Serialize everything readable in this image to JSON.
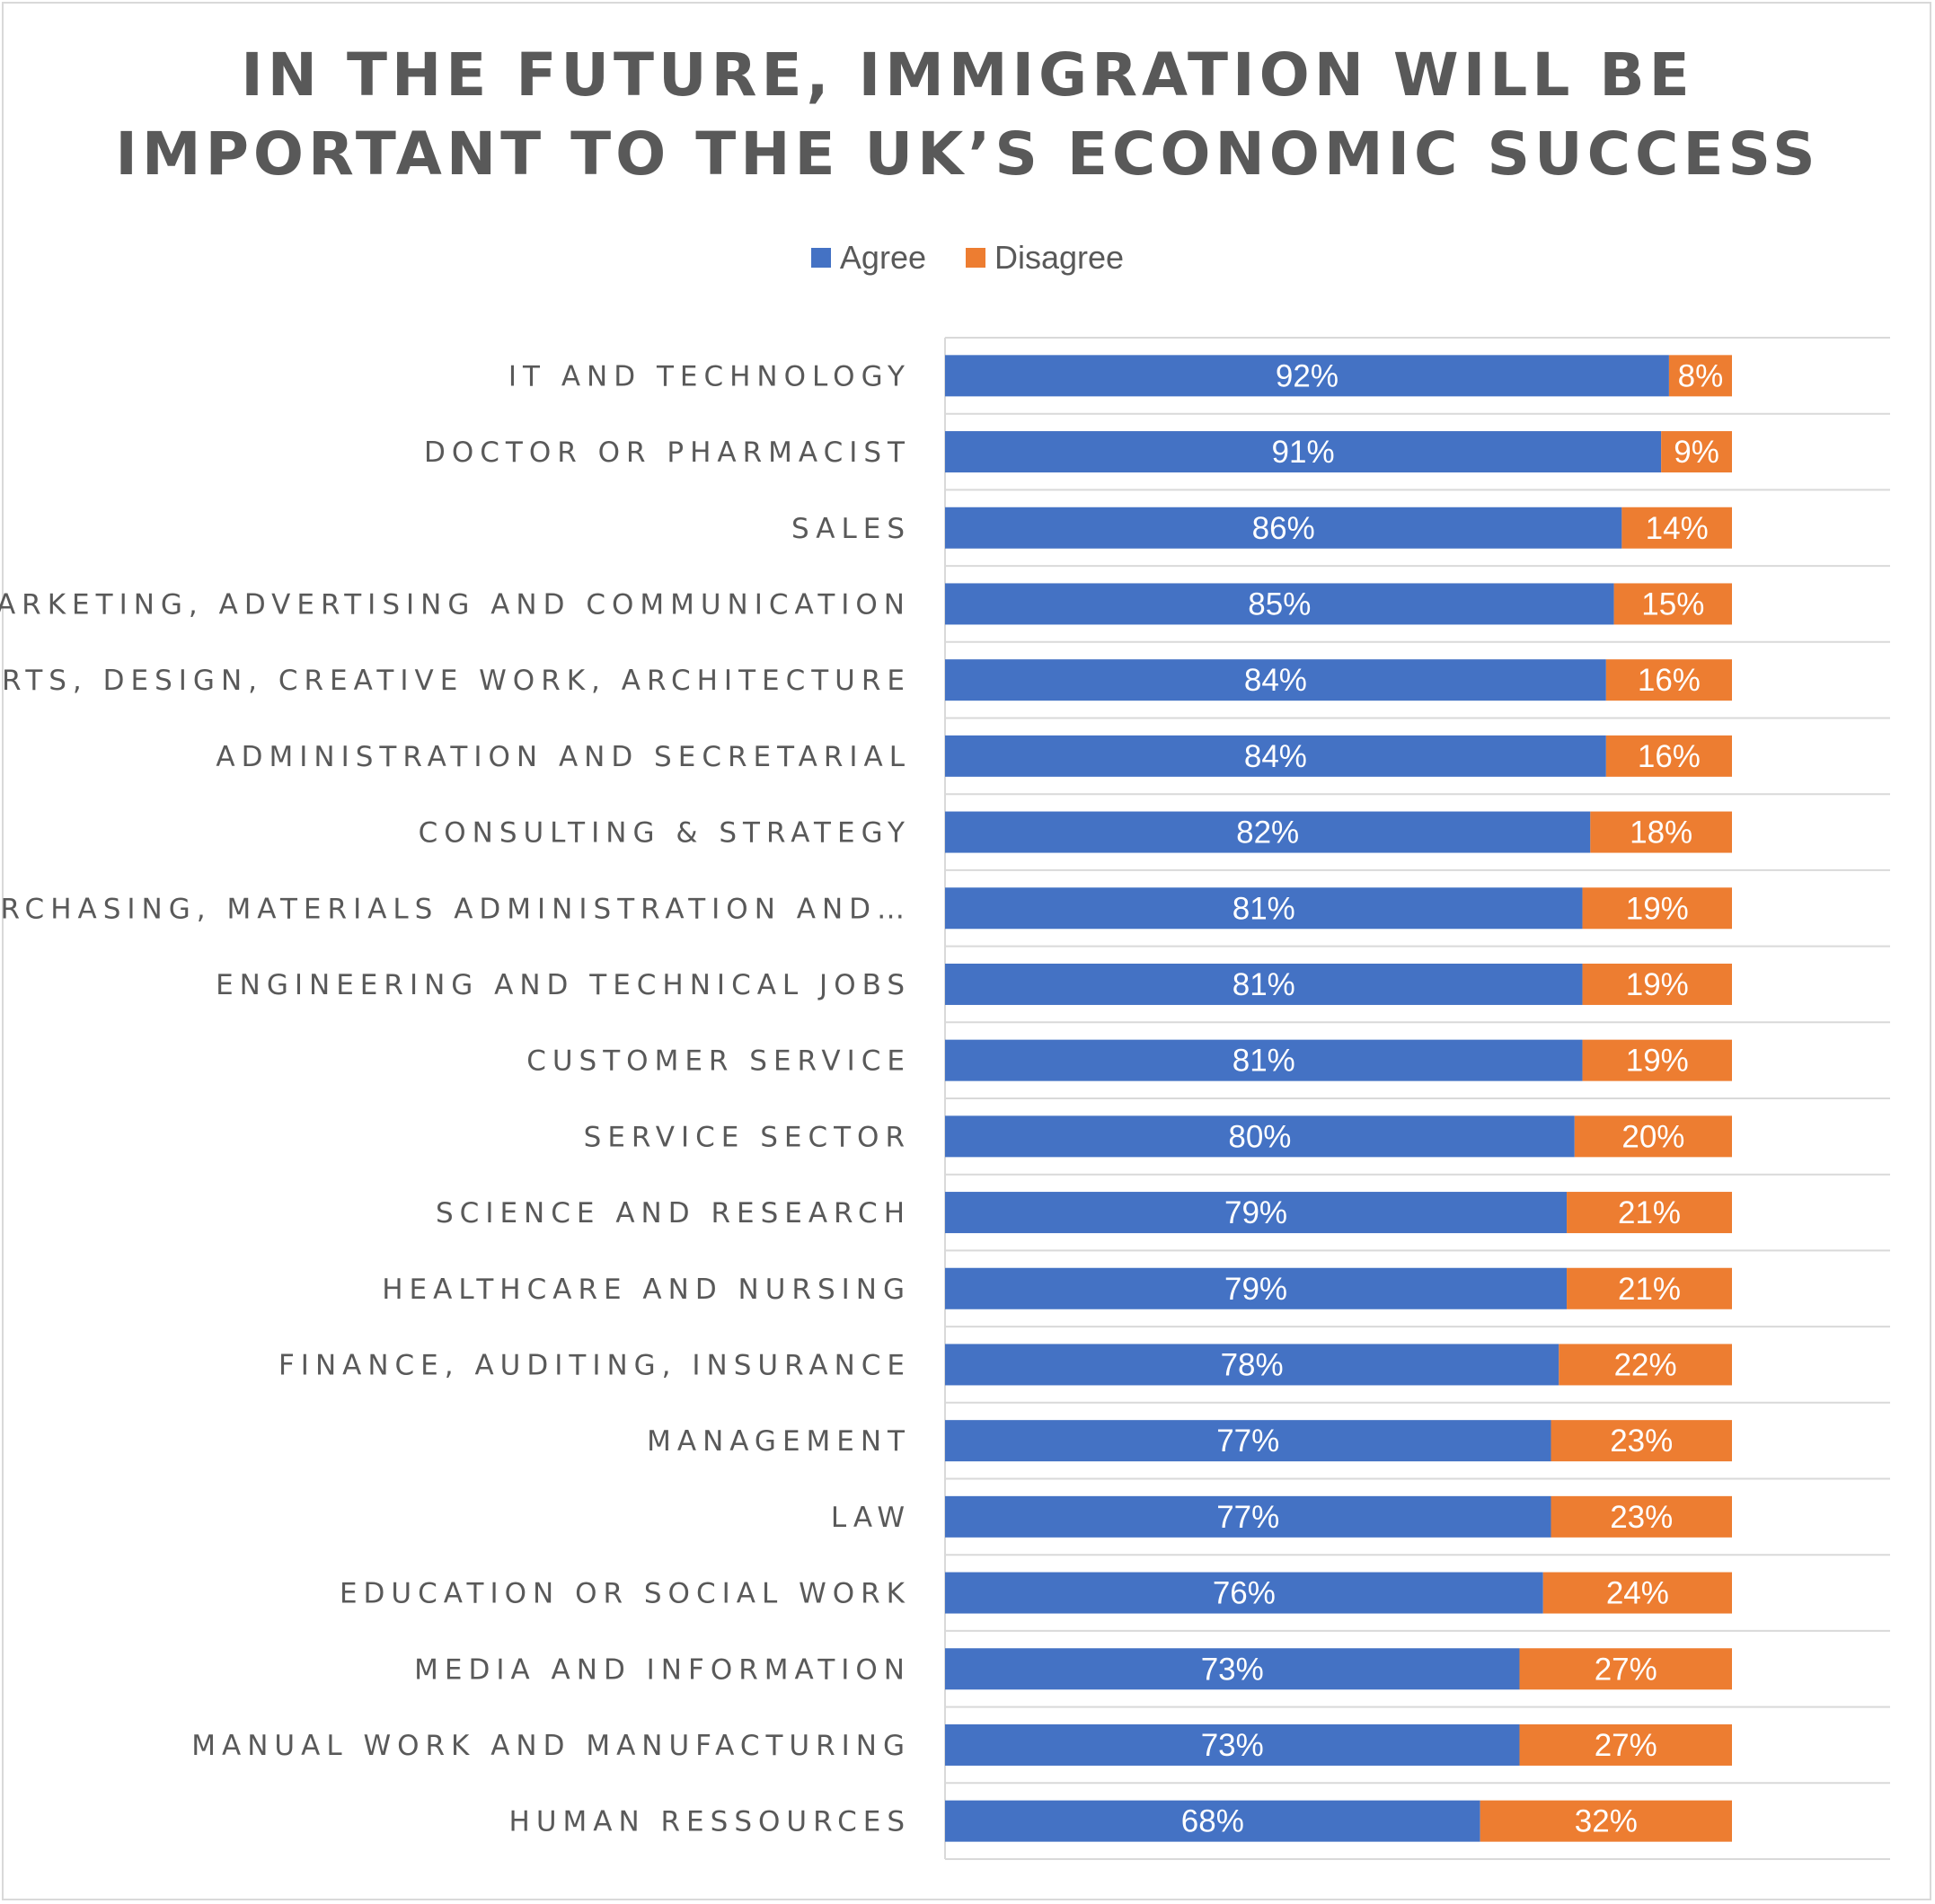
{
  "chart_data": {
    "type": "bar",
    "orientation": "horizontal",
    "stacked": true,
    "title_lines": [
      "IN THE FUTURE, IMMIGRATION WILL BE",
      "IMPORTANT TO THE UK’S ECONOMIC SUCCESS"
    ],
    "legend_position": "top",
    "grid": true,
    "xlim": [
      0,
      100
    ],
    "categories": [
      "IT AND TECHNOLOGY",
      "DOCTOR OR PHARMACIST",
      "SALES",
      "MARKETING, ADVERTISING AND COMMUNICATION",
      "ARTS, DESIGN, CREATIVE WORK, ARCHITECTURE",
      "ADMINISTRATION AND SECRETARIAL",
      "CONSULTING & STRATEGY",
      "PURCHASING, MATERIALS ADMINISTRATION AND…",
      "ENGINEERING AND TECHNICAL JOBS",
      "CUSTOMER SERVICE",
      "SERVICE SECTOR",
      "SCIENCE AND RESEARCH",
      "HEALTHCARE AND NURSING",
      "FINANCE, AUDITING, INSURANCE",
      "MANAGEMENT",
      "LAW",
      "EDUCATION OR SOCIAL WORK",
      "MEDIA AND INFORMATION",
      "MANUAL WORK AND MANUFACTURING",
      "HUMAN RESSOURCES"
    ],
    "series": [
      {
        "name": "Agree",
        "color": "#4472c4",
        "values": [
          92,
          91,
          86,
          85,
          84,
          84,
          82,
          81,
          81,
          81,
          80,
          79,
          79,
          78,
          77,
          77,
          76,
          73,
          73,
          68
        ],
        "labels": [
          "92%",
          "91%",
          "86%",
          "85%",
          "84%",
          "84%",
          "82%",
          "81%",
          "81%",
          "81%",
          "80%",
          "79%",
          "79%",
          "78%",
          "77%",
          "77%",
          "76%",
          "73%",
          "73%",
          "68%"
        ]
      },
      {
        "name": "Disagree",
        "color": "#ed7d31",
        "values": [
          8,
          9,
          14,
          15,
          16,
          16,
          18,
          19,
          19,
          19,
          20,
          21,
          21,
          22,
          23,
          23,
          24,
          27,
          27,
          32
        ],
        "labels": [
          "8%",
          "9%",
          "14%",
          "15%",
          "16%",
          "16%",
          "18%",
          "19%",
          "19%",
          "19%",
          "20%",
          "21%",
          "21%",
          "22%",
          "23%",
          "23%",
          "24%",
          "27%",
          "27%",
          "32%"
        ]
      }
    ]
  }
}
